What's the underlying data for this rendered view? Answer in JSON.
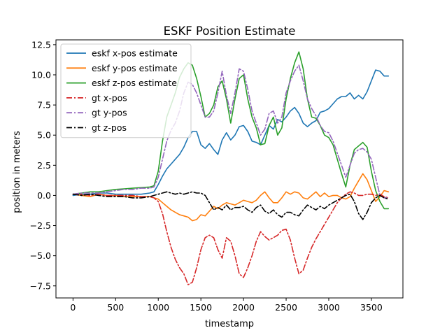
{
  "chart_data": {
    "type": "line",
    "title": "ESKF Position Estimate",
    "xlabel": "timestamp",
    "ylabel": "position in meters",
    "xlim": [
      -200,
      3870
    ],
    "ylim": [
      -8.5,
      12.9
    ],
    "xticks": [
      0,
      500,
      1000,
      1500,
      2000,
      2500,
      3000,
      3500
    ],
    "yticks": [
      -7.5,
      -5.0,
      -2.5,
      0.0,
      2.5,
      5.0,
      7.5,
      10.0,
      12.5
    ],
    "xtick_labels": [
      "0",
      "500",
      "1000",
      "1500",
      "2000",
      "2500",
      "3000",
      "3500"
    ],
    "ytick_labels": [
      "−7.5",
      "−5.0",
      "−2.5",
      "0.0",
      "2.5",
      "5.0",
      "7.5",
      "10.0",
      "12.5"
    ],
    "grid": false,
    "legend_position": "upper-left",
    "series": [
      {
        "name": "eskf x-pos estimate",
        "color": "#1f77b4",
        "dash": "solid",
        "x": [
          0,
          100,
          200,
          300,
          400,
          500,
          600,
          700,
          800,
          900,
          950,
          1000,
          1050,
          1100,
          1150,
          1200,
          1250,
          1300,
          1350,
          1400,
          1450,
          1500,
          1550,
          1600,
          1650,
          1700,
          1750,
          1800,
          1850,
          1900,
          1950,
          2000,
          2050,
          2100,
          2150,
          2200,
          2250,
          2300,
          2350,
          2400,
          2450,
          2500,
          2550,
          2600,
          2650,
          2700,
          2750,
          2800,
          2850,
          2900,
          2950,
          3000,
          3050,
          3100,
          3150,
          3200,
          3250,
          3300,
          3350,
          3400,
          3450,
          3500,
          3550,
          3600,
          3650,
          3700
        ],
        "y": [
          0.0,
          0.1,
          0.1,
          0.2,
          0.2,
          0.1,
          0.1,
          0.1,
          0.1,
          0.2,
          0.3,
          0.9,
          1.6,
          2.2,
          2.6,
          3.0,
          3.4,
          4.0,
          4.8,
          5.3,
          5.3,
          4.2,
          3.9,
          4.3,
          3.8,
          3.4,
          4.6,
          5.2,
          4.6,
          5.0,
          5.7,
          5.8,
          5.3,
          4.5,
          4.4,
          4.2,
          5.0,
          5.8,
          5.5,
          6.3,
          6.1,
          6.5,
          7.0,
          7.3,
          6.8,
          6.0,
          5.7,
          6.0,
          6.2,
          6.9,
          7.0,
          7.2,
          7.6,
          8.0,
          8.2,
          8.2,
          8.5,
          8.0,
          8.3,
          8.0,
          8.6,
          9.5,
          10.4,
          10.3,
          9.9,
          9.9
        ]
      },
      {
        "name": "eskf y-pos estimate",
        "color": "#ff7f0e",
        "dash": "solid",
        "x": [
          0,
          100,
          200,
          300,
          400,
          500,
          600,
          700,
          800,
          900,
          950,
          1000,
          1050,
          1100,
          1150,
          1200,
          1250,
          1300,
          1350,
          1400,
          1450,
          1500,
          1550,
          1600,
          1650,
          1700,
          1750,
          1800,
          1850,
          1900,
          1950,
          2000,
          2050,
          2100,
          2150,
          2200,
          2250,
          2300,
          2350,
          2400,
          2450,
          2500,
          2550,
          2600,
          2650,
          2700,
          2750,
          2800,
          2850,
          2900,
          2950,
          3000,
          3050,
          3100,
          3150,
          3200,
          3250,
          3300,
          3350,
          3400,
          3450,
          3500,
          3550,
          3600,
          3650,
          3700
        ],
        "y": [
          0.1,
          0.0,
          -0.1,
          0.1,
          0.0,
          0.0,
          -0.1,
          -0.1,
          -0.1,
          -0.1,
          -0.2,
          -0.3,
          -0.6,
          -0.9,
          -1.2,
          -1.4,
          -1.6,
          -1.7,
          -1.8,
          -2.1,
          -2.0,
          -1.6,
          -1.7,
          -1.3,
          -0.9,
          -1.1,
          -0.8,
          -0.6,
          -0.7,
          -0.8,
          -0.6,
          -0.4,
          -0.5,
          -0.6,
          -0.4,
          0.0,
          0.3,
          -0.2,
          -0.6,
          -0.6,
          -0.2,
          0.3,
          0.1,
          0.3,
          0.2,
          -0.2,
          -0.3,
          0.0,
          0.3,
          -0.1,
          0.2,
          -0.1,
          0.0,
          0.0,
          -0.2,
          -0.3,
          -0.1,
          0.6,
          1.2,
          1.8,
          1.3,
          0.4,
          -0.5,
          -0.1,
          0.4,
          0.3
        ]
      },
      {
        "name": "eskf z-pos estimate",
        "color": "#2ca02c",
        "dash": "solid",
        "x": [
          0,
          100,
          200,
          300,
          400,
          500,
          600,
          700,
          800,
          900,
          950,
          1000,
          1050,
          1100,
          1150,
          1200,
          1250,
          1300,
          1350,
          1400,
          1450,
          1500,
          1550,
          1600,
          1650,
          1700,
          1750,
          1800,
          1850,
          1900,
          1950,
          2000,
          2050,
          2100,
          2150,
          2200,
          2250,
          2300,
          2350,
          2400,
          2450,
          2500,
          2550,
          2600,
          2650,
          2700,
          2750,
          2800,
          2850,
          2900,
          2950,
          3000,
          3050,
          3100,
          3150,
          3200,
          3250,
          3300,
          3350,
          3400,
          3450,
          3500,
          3550,
          3600,
          3650,
          3700
        ],
        "y": [
          0.1,
          0.2,
          0.3,
          0.3,
          0.4,
          0.5,
          0.55,
          0.6,
          0.65,
          0.7,
          0.8,
          2.0,
          4.5,
          6.5,
          7.5,
          8.5,
          9.8,
          10.5,
          11.0,
          10.8,
          9.7,
          8.2,
          6.5,
          6.8,
          7.5,
          9.0,
          9.5,
          8.0,
          6.0,
          8.0,
          9.7,
          10.0,
          8.0,
          6.5,
          5.6,
          4.2,
          4.3,
          5.8,
          6.5,
          5.0,
          5.6,
          8.0,
          9.7,
          11.0,
          11.9,
          10.5,
          8.0,
          6.5,
          6.4,
          5.8,
          5.0,
          4.8,
          4.2,
          3.0,
          1.8,
          0.7,
          2.5,
          3.8,
          4.1,
          4.4,
          4.0,
          2.0,
          0.4,
          -0.5,
          -1.1,
          -1.1
        ]
      },
      {
        "name": "gt x-pos",
        "color": "#d62728",
        "dash": "dashdot",
        "x": [
          0,
          100,
          200,
          300,
          400,
          500,
          600,
          700,
          800,
          900,
          950,
          1000,
          1050,
          1100,
          1150,
          1200,
          1250,
          1300,
          1350,
          1400,
          1450,
          1500,
          1550,
          1600,
          1650,
          1700,
          1750,
          1800,
          1850,
          1900,
          1950,
          2000,
          2050,
          2100,
          2150,
          2200,
          2250,
          2300,
          2350,
          2400,
          2450,
          2500,
          2550,
          2600,
          2650,
          2700,
          2750,
          2800,
          2850,
          2900,
          2950,
          3000,
          3050,
          3100,
          3150,
          3200,
          3250,
          3300,
          3350,
          3400,
          3450,
          3500,
          3550,
          3600,
          3650,
          3700
        ],
        "y": [
          0.1,
          0.1,
          0.0,
          0.1,
          0.0,
          0.0,
          0.0,
          0.0,
          -0.1,
          -0.1,
          -0.2,
          -0.5,
          -1.5,
          -3.0,
          -4.3,
          -5.3,
          -6.0,
          -6.5,
          -7.4,
          -7.2,
          -6.0,
          -4.5,
          -3.5,
          -3.3,
          -3.5,
          -4.5,
          -5.2,
          -3.5,
          -3.8,
          -5.0,
          -6.5,
          -6.8,
          -6.0,
          -5.0,
          -3.8,
          -3.0,
          -3.4,
          -3.7,
          -3.5,
          -3.3,
          -2.9,
          -2.8,
          -3.7,
          -5.2,
          -6.5,
          -6.2,
          -5.2,
          -4.3,
          -3.6,
          -3.0,
          -2.4,
          -1.8,
          -1.2,
          -0.6,
          -0.2,
          0.1,
          0.3,
          0.2,
          0.0,
          0.0,
          0.1,
          0.1,
          0.0,
          0.1,
          -0.1,
          -0.2
        ]
      },
      {
        "name": "gt y-pos",
        "color": "#9467bd",
        "dash": "dashdot",
        "x": [
          0,
          100,
          200,
          300,
          400,
          500,
          600,
          700,
          800,
          900,
          950,
          1000,
          1050,
          1100,
          1150,
          1200,
          1250,
          1300,
          1350,
          1400,
          1450,
          1500,
          1550,
          1600,
          1650,
          1700,
          1750,
          1800,
          1850,
          1900,
          1950,
          2000,
          2050,
          2100,
          2150,
          2200,
          2250,
          2300,
          2350,
          2400,
          2450,
          2500,
          2550,
          2600,
          2650,
          2700,
          2750,
          2800,
          2850,
          2900,
          2950,
          3000,
          3050,
          3100,
          3150,
          3200,
          3250,
          3300,
          3350,
          3400,
          3450,
          3500,
          3550,
          3600,
          3650,
          3700
        ],
        "y": [
          0.1,
          0.2,
          0.2,
          0.2,
          0.3,
          0.4,
          0.5,
          0.5,
          0.6,
          0.6,
          0.7,
          1.5,
          3.0,
          4.5,
          5.4,
          6.0,
          7.0,
          8.5,
          9.4,
          9.2,
          8.5,
          7.5,
          6.5,
          6.5,
          7.0,
          8.5,
          10.3,
          8.3,
          6.8,
          8.5,
          10.5,
          10.3,
          8.8,
          7.0,
          6.0,
          5.0,
          5.5,
          6.8,
          7.0,
          6.0,
          6.5,
          8.5,
          9.5,
          10.3,
          10.8,
          9.5,
          8.0,
          7.2,
          6.6,
          5.8,
          5.3,
          5.2,
          4.5,
          3.5,
          2.5,
          1.5,
          2.5,
          3.5,
          3.8,
          3.9,
          3.6,
          3.0,
          1.5,
          0.0,
          -0.2,
          -0.2
        ]
      },
      {
        "name": "gt z-pos",
        "color": "#000000",
        "dash": "dashdot",
        "x": [
          0,
          100,
          200,
          300,
          400,
          500,
          600,
          700,
          800,
          900,
          950,
          1000,
          1050,
          1100,
          1150,
          1200,
          1250,
          1300,
          1350,
          1400,
          1450,
          1500,
          1550,
          1600,
          1650,
          1700,
          1750,
          1800,
          1850,
          1900,
          1950,
          2000,
          2050,
          2100,
          2150,
          2200,
          2250,
          2300,
          2350,
          2400,
          2450,
          2500,
          2550,
          2600,
          2650,
          2700,
          2750,
          2800,
          2850,
          2900,
          2950,
          3000,
          3050,
          3100,
          3150,
          3200,
          3250,
          3300,
          3350,
          3400,
          3450,
          3500,
          3550,
          3600,
          3650,
          3700
        ],
        "y": [
          0.1,
          0.0,
          0.1,
          0.0,
          -0.1,
          -0.1,
          -0.1,
          -0.2,
          -0.2,
          -0.1,
          0.0,
          0.1,
          0.2,
          0.3,
          0.2,
          0.1,
          0.2,
          0.1,
          0.2,
          0.3,
          0.2,
          0.2,
          0.0,
          -0.6,
          -1.2,
          -1.0,
          -1.2,
          -0.8,
          -1.2,
          -1.0,
          -1.0,
          -0.9,
          -1.2,
          -1.4,
          -1.0,
          -0.8,
          -1.3,
          -1.5,
          -1.2,
          -1.6,
          -1.8,
          -1.4,
          -1.4,
          -1.6,
          -1.7,
          -1.2,
          -0.8,
          -1.0,
          -1.2,
          -0.9,
          -1.1,
          -0.8,
          -0.6,
          -0.4,
          -0.2,
          0.0,
          0.1,
          -0.5,
          -1.5,
          -2.0,
          -1.4,
          -0.6,
          -0.2,
          0.0,
          -0.2,
          -0.3
        ]
      }
    ]
  }
}
